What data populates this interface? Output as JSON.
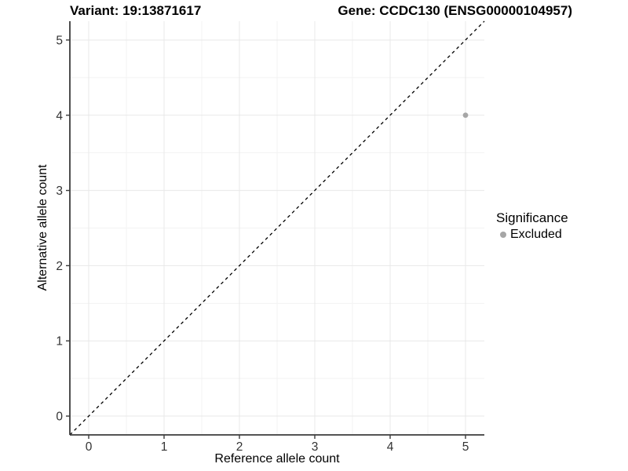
{
  "chart_data": {
    "type": "scatter",
    "title_left": "Variant: 19:13871617",
    "title_right": "Gene: CCDC130 (ENSG00000104957)",
    "xlabel": "Reference allele count",
    "ylabel": "Alternative allele count",
    "xlim": [
      -0.25,
      5.25
    ],
    "ylim": [
      -0.25,
      5.25
    ],
    "x_ticks": [
      0,
      1,
      2,
      3,
      4,
      5
    ],
    "y_ticks": [
      0,
      1,
      2,
      3,
      4,
      5
    ],
    "minor_step": 0.5,
    "grid": true,
    "legend": {
      "title": "Significance",
      "position": "right",
      "items": [
        {
          "label": "Excluded",
          "color": "#a6a6a6"
        }
      ]
    },
    "series": [
      {
        "name": "Excluded",
        "color": "#a6a6a6",
        "points": [
          {
            "x": 5,
            "y": 4
          }
        ]
      }
    ],
    "reference_line": {
      "kind": "identity",
      "dash": "dashed",
      "color": "#000000"
    }
  },
  "colors": {
    "background": "#ffffff",
    "grid_major": "#e8e8e8",
    "grid_minor": "#f3f3f3",
    "axis_line": "#3b3b3b",
    "axis_text": "#333333",
    "title_text": "#000000"
  }
}
